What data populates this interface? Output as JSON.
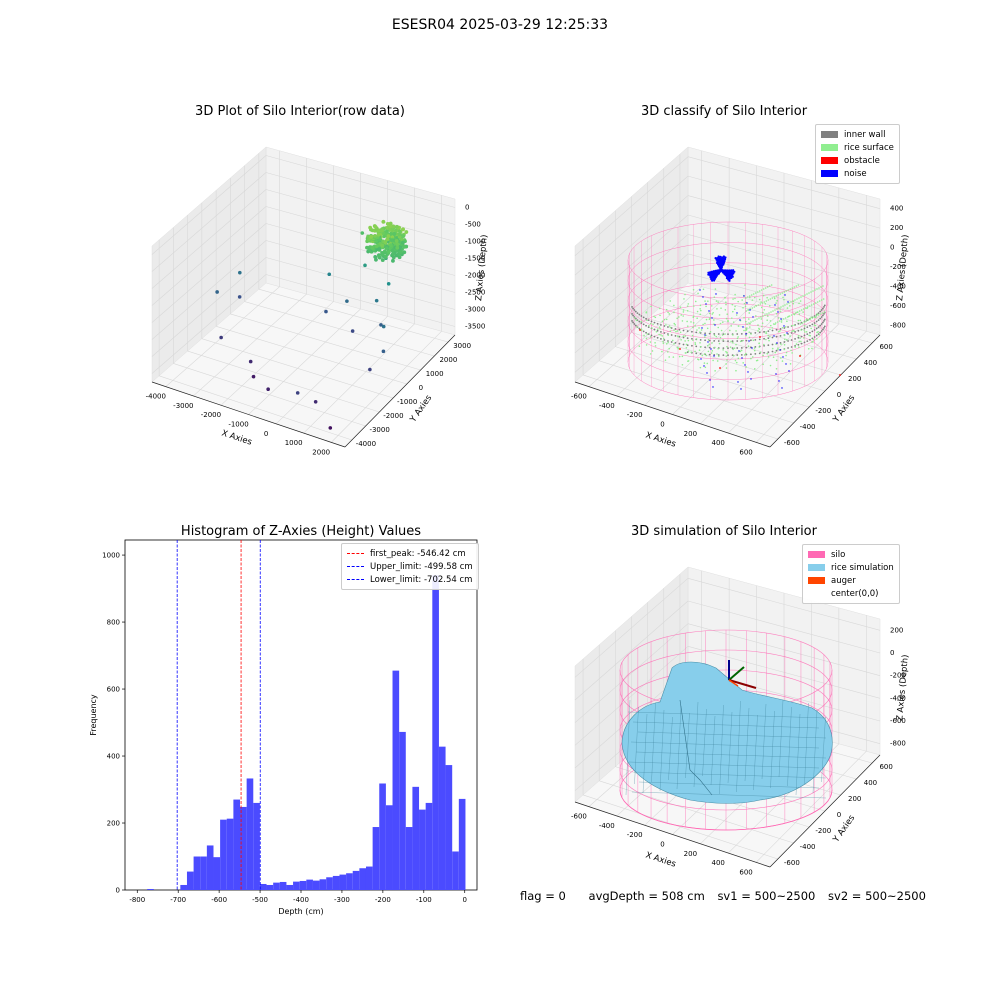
{
  "suptitle": "ESESR04 2025-03-29 12:25:33",
  "footer": {
    "flag": "flag = 0",
    "avg": "avgDepth = 508 cm",
    "sv1": "sv1 = 500~2500",
    "sv2": "sv2 = 500~2500"
  },
  "colors": {
    "histogram_bar": "#4b4bff",
    "peak_line": "#ff0000",
    "limit_line": "#0000ff",
    "inner_wall": "#808080",
    "rice_surface": "#90ee90",
    "obstacle": "#ff0000",
    "noise": "#0000ff",
    "silo": "#ff69b4",
    "rice_simulation": "#87ceeb",
    "auger": "#ff4500"
  },
  "chart_data": [
    {
      "type": "scatter",
      "title": "3D Plot of Silo Interior(row data)",
      "xlabel": "X Axies",
      "ylabel": "Y Axies",
      "zlabel": "Z Axies (Depth)",
      "x_ticks": [
        "-4000",
        "-3000",
        "-2000",
        "-1000",
        "0",
        "1000",
        "2000"
      ],
      "y_ticks": [
        "-4000",
        "-3000",
        "-2000",
        "-1000",
        "0",
        "1000",
        "2000",
        "3000"
      ],
      "z_ticks": [
        "0",
        "-500",
        "-1000",
        "-1500",
        "-2000",
        "-2500",
        "-3000",
        "-3500"
      ],
      "xlim": [
        -4300,
        2200
      ],
      "ylim": [
        -4200,
        3300
      ],
      "zlim": [
        -3800,
        200
      ],
      "points": [
        {
          "x": -4000,
          "y": -500,
          "z": -2500
        },
        {
          "x": -3800,
          "y": 600,
          "z": -2300
        },
        {
          "x": -3600,
          "y": 200,
          "z": -2800
        },
        {
          "x": -3200,
          "y": -1800,
          "z": -3100
        },
        {
          "x": -2000,
          "y": -2200,
          "z": -3300
        },
        {
          "x": -1700,
          "y": -2600,
          "z": -3500
        },
        {
          "x": -900,
          "y": -3200,
          "z": -3400
        },
        {
          "x": 300,
          "y": -3600,
          "z": -3000
        },
        {
          "x": 700,
          "y": -3200,
          "z": -3300
        },
        {
          "x": 1500,
          "y": -3800,
          "z": -3600
        },
        {
          "x": -1000,
          "y": 800,
          "z": -2700
        },
        {
          "x": -500,
          "y": 1200,
          "z": -2400
        },
        {
          "x": 0,
          "y": 600,
          "z": -2900
        },
        {
          "x": 400,
          "y": 1400,
          "z": -2200
        },
        {
          "x": 800,
          "y": 900,
          "z": -2600
        },
        {
          "x": 1200,
          "y": 300,
          "z": -2300
        },
        {
          "x": 1600,
          "y": -500,
          "z": -2600
        },
        {
          "x": 1400,
          "y": -1000,
          "z": -3000
        },
        {
          "x": -300,
          "y": 2000,
          "z": -1600
        },
        {
          "x": 200,
          "y": 2400,
          "z": -1400
        },
        {
          "x": -700,
          "y": 2600,
          "z": -1000
        },
        {
          "x": 600,
          "y": 1800,
          "z": -1800
        },
        {
          "x": -1300,
          "y": 1600,
          "z": -2000
        }
      ],
      "surface_cluster": {
        "x": [
          -300,
          900
        ],
        "y": [
          1500,
          3000
        ],
        "z": [
          -1400,
          -500
        ]
      }
    },
    {
      "type": "scatter",
      "title": "3D classify of Silo Interior",
      "xlabel": "X Axies",
      "ylabel": "Y Axies",
      "zlabel": "Z Axies (Depth)",
      "x_ticks": [
        "-600",
        "-400",
        "-200",
        "0",
        "200",
        "400",
        "600"
      ],
      "y_ticks": [
        "-600",
        "-400",
        "-200",
        "0",
        "200",
        "400",
        "600"
      ],
      "z_ticks": [
        "400",
        "200",
        "0",
        "-200",
        "-400",
        "-600",
        "-800"
      ],
      "legend": [
        "inner wall",
        "rice surface",
        "obstacle",
        "noise"
      ],
      "legend_position": "upper right",
      "silo_radius": 580,
      "silo_z": [
        -850,
        120
      ]
    },
    {
      "type": "bar",
      "title": "Histogram of Z-Axies (Height) Values",
      "xlabel": "Depth (cm)",
      "ylabel": "Frequency",
      "xlim": [
        -830,
        30
      ],
      "ylim": [
        0,
        1045
      ],
      "x_ticks": [
        -800,
        -700,
        -600,
        -500,
        -400,
        -300,
        -200,
        -100,
        0
      ],
      "y_ticks": [
        0,
        200,
        400,
        600,
        800,
        1000
      ],
      "bin_width": 16.2,
      "bin_start": -792,
      "values": [
        0,
        3,
        0,
        0,
        0,
        0,
        15,
        55,
        100,
        100,
        133,
        98,
        210,
        213,
        270,
        248,
        333,
        260,
        18,
        15,
        22,
        24,
        15,
        25,
        27,
        31,
        28,
        32,
        38,
        42,
        46,
        50,
        57,
        65,
        70,
        188,
        318,
        253,
        655,
        472,
        188,
        308,
        240,
        260,
        940,
        428,
        373,
        115,
        272
      ],
      "vlines": [
        {
          "label": "first_peak: -546.42 cm",
          "x": -546.42,
          "color": "red"
        },
        {
          "label": "Upper_limit: -499.58 cm",
          "x": -499.58,
          "color": "blue"
        },
        {
          "label": "Lower_limit: -702.54 cm",
          "x": -702.54,
          "color": "blue"
        }
      ],
      "legend_position": "upper right"
    },
    {
      "type": "area",
      "title": "3D simulation of Silo Interior",
      "xlabel": "X Axies",
      "ylabel": "Y Axies",
      "zlabel": "Z Axies (Depth)",
      "x_ticks": [
        "-600",
        "-400",
        "-200",
        "0",
        "200",
        "400",
        "600"
      ],
      "y_ticks": [
        "-600",
        "-400",
        "-200",
        "0",
        "200",
        "400",
        "600"
      ],
      "z_ticks": [
        "200",
        "0",
        "-200",
        "-400",
        "-600",
        "-800"
      ],
      "legend": [
        "silo",
        "rice simulation",
        "auger",
        "center(0,0)"
      ],
      "legend_position": "upper right"
    }
  ]
}
